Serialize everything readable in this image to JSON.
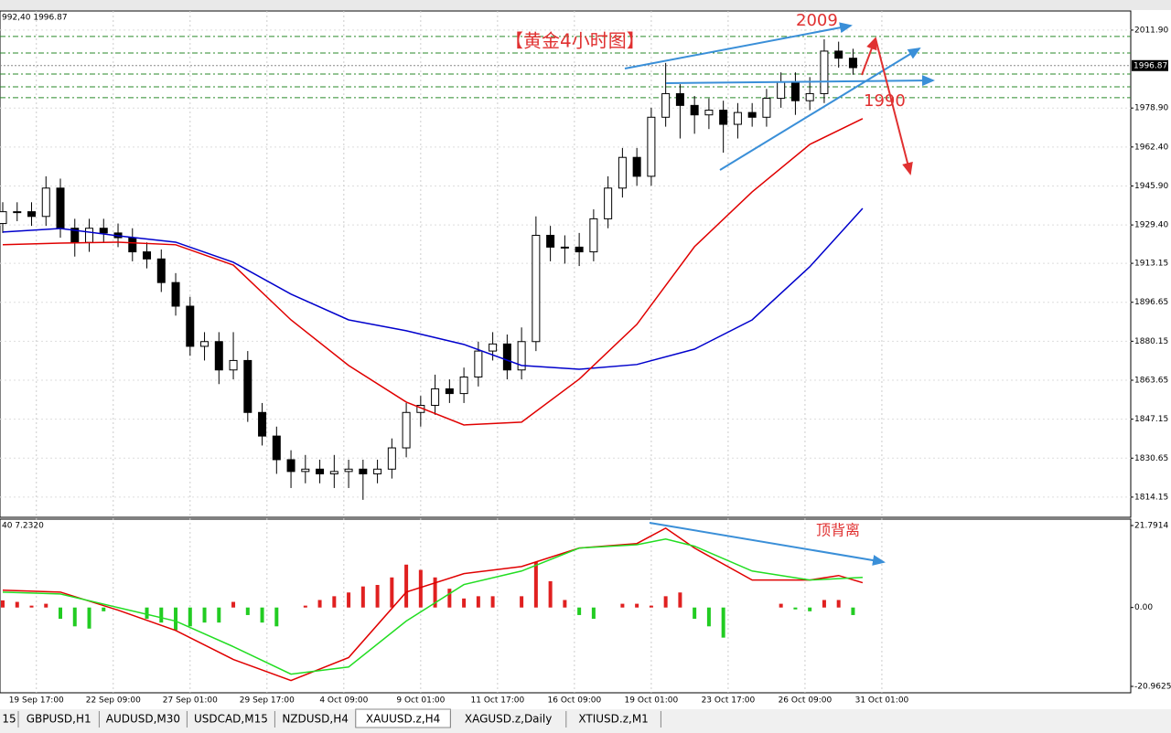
{
  "chart_data": [
    {
      "type": "candlestick",
      "info": "992,40 1996.87",
      "last_price": 1996.87,
      "xlim": [
        0,
        235
      ],
      "ylim": [
        1805.6,
        2020.0
      ],
      "yticks": [
        {
          "value": 2011.9,
          "label": "2011.90"
        },
        {
          "value": 1978.9,
          "label": "1978.90"
        },
        {
          "value": 1962.4,
          "label": "1962.40"
        },
        {
          "value": 1945.9,
          "label": "1945.90"
        },
        {
          "value": 1929.4,
          "label": "1929.40"
        },
        1913.15,
        1896.65,
        1880.15,
        1863.65,
        1847.15,
        1830.65,
        1814.15
      ],
      "grid": true,
      "levels": [
        2009.2,
        2002.2,
        1993.3,
        1987.9,
        1983.3
      ],
      "annotations": [
        "【黄金4小时图】",
        "2009",
        "1990"
      ],
      "x": [
        0,
        3,
        6,
        9,
        12,
        15,
        18,
        21,
        24,
        27,
        30,
        33,
        36,
        39,
        42,
        45,
        48,
        51,
        54,
        57,
        60,
        63,
        66,
        69,
        72,
        75,
        78,
        81,
        84,
        87,
        90,
        93,
        96,
        99,
        102,
        105,
        108,
        111,
        114,
        117,
        120,
        123,
        126,
        129,
        132,
        135,
        138,
        141,
        144,
        147,
        150,
        153,
        156,
        159,
        162,
        165,
        168,
        171,
        174,
        177
      ],
      "open": [
        1930,
        1935,
        1935,
        1933,
        1945,
        1928,
        1922,
        1928,
        1926,
        1924,
        1918,
        1915,
        1905,
        1895,
        1878,
        1880,
        1868,
        1872,
        1850,
        1840,
        1830,
        1825,
        1826,
        1824,
        1825,
        1826,
        1824,
        1826,
        1835,
        1850,
        1853,
        1860,
        1858,
        1865,
        1876,
        1879,
        1868,
        1880,
        1925,
        1920,
        1920,
        1918,
        1932,
        1945,
        1958,
        1950,
        1975,
        1985,
        1980,
        1976,
        1978,
        1972,
        1977,
        1975,
        1983,
        1990,
        1982,
        1985,
        2003,
        2000
      ],
      "high": [
        1939,
        1939,
        1939,
        1950,
        1949,
        1932,
        1932,
        1932,
        1930,
        1928,
        1922,
        1919,
        1909,
        1899,
        1884,
        1884,
        1884,
        1876,
        1854,
        1844,
        1834,
        1832,
        1830,
        1832,
        1830,
        1830,
        1830,
        1839,
        1854,
        1857,
        1866,
        1864,
        1869,
        1880,
        1884,
        1883,
        1886,
        1933,
        1929,
        1925,
        1926,
        1936,
        1950,
        1962,
        1962,
        1979,
        1998,
        1989,
        1984,
        1983,
        1982,
        1981,
        1981,
        1987,
        1994,
        1994,
        1992,
        2008,
        2007,
        2004
      ],
      "low": [
        1926,
        1931,
        1929,
        1929,
        1924,
        1916,
        1918,
        1922,
        1920,
        1914,
        1911,
        1901,
        1891,
        1874,
        1872,
        1862,
        1864,
        1846,
        1836,
        1824,
        1818,
        1820,
        1820,
        1818,
        1818,
        1813,
        1820,
        1822,
        1831,
        1844,
        1849,
        1854,
        1854,
        1861,
        1872,
        1864,
        1864,
        1876,
        1914,
        1913,
        1912,
        1914,
        1928,
        1941,
        1946,
        1946,
        1971,
        1966,
        1968,
        1970,
        1960,
        1966,
        1971,
        1971,
        1979,
        1976,
        1978,
        1981,
        1996,
        1993
      ],
      "close": [
        1935,
        1935,
        1933,
        1945,
        1928,
        1922,
        1928,
        1926,
        1924,
        1918,
        1915,
        1905,
        1895,
        1878,
        1880,
        1868,
        1872,
        1850,
        1840,
        1830,
        1825,
        1826,
        1824,
        1825,
        1826,
        1824,
        1826,
        1835,
        1850,
        1853,
        1860,
        1858,
        1865,
        1876,
        1879,
        1868,
        1880,
        1925,
        1920,
        1920,
        1918,
        1932,
        1945,
        1958,
        1950,
        1975,
        1985,
        1980,
        1976,
        1978,
        1972,
        1977,
        1975,
        1983,
        1990,
        1982,
        1985,
        2003,
        2000,
        1996
      ],
      "lines": [
        {
          "color": "#0000cc",
          "x": [
            0,
            12,
            24,
            36,
            48,
            60,
            72,
            84,
            96,
            108,
            120,
            132,
            144,
            156,
            168,
            179
          ],
          "values": [
            1926.4,
            1927.9,
            1924.8,
            1922.1,
            1913.6,
            1900.1,
            1889.2,
            1884.6,
            1878.8,
            1869.9,
            1868.3,
            1870.3,
            1876.8,
            1889.2,
            1911.7,
            1936.4
          ]
        },
        {
          "color": "#e00000",
          "x": [
            0,
            12,
            24,
            36,
            48,
            60,
            72,
            84,
            96,
            108,
            120,
            132,
            144,
            156,
            168,
            179
          ],
          "values": [
            1921.0,
            1921.7,
            1922.1,
            1921.0,
            1912.4,
            1889.2,
            1869.9,
            1854.4,
            1844.7,
            1845.9,
            1864.1,
            1887.3,
            1920.2,
            1943.4,
            1963.5,
            1974.4
          ]
        }
      ]
    },
    {
      "type": "macd",
      "info": "40 7.2320",
      "annotations": [
        "顶背离"
      ],
      "xlim": [
        0,
        235
      ],
      "ylim": [
        -22.66,
        23.49
      ],
      "yticks": [
        21.7914,
        {
          "value": 0,
          "label": "0.00"
        },
        -20.9625
      ],
      "xticks": [
        {
          "value": 7,
          "label": "19 Sep 17:00"
        },
        {
          "value": 23,
          "label": "22 Sep 09:00"
        },
        {
          "value": 39,
          "label": "27 Sep 01:00"
        },
        {
          "value": 55,
          "label": "29 Sep 17:00"
        },
        {
          "value": 71,
          "label": "4 Oct 09:00"
        },
        {
          "value": 87,
          "label": "9 Oct 01:00"
        },
        {
          "value": 103,
          "label": "11 Oct 17:00"
        },
        {
          "value": 119,
          "label": "16 Oct 09:00"
        },
        {
          "value": 135,
          "label": "19 Oct 01:00"
        },
        {
          "value": 151,
          "label": "23 Oct 17:00"
        },
        {
          "value": 167,
          "label": "26 Oct 09:00"
        },
        {
          "value": 183,
          "label": "31 Oct 01:00"
        }
      ],
      "x": [
        0,
        3,
        6,
        9,
        12,
        15,
        18,
        21,
        24,
        27,
        30,
        33,
        36,
        39,
        42,
        45,
        48,
        51,
        54,
        57,
        60,
        63,
        66,
        69,
        72,
        75,
        78,
        81,
        84,
        87,
        90,
        93,
        96,
        99,
        102,
        105,
        108,
        111,
        114,
        117,
        120,
        123,
        126,
        129,
        132,
        135,
        138,
        141,
        144,
        147,
        150,
        153,
        156,
        159,
        162,
        165,
        168,
        171,
        174,
        177
      ],
      "histogram": [
        1.9,
        1.5,
        0.5,
        1,
        -3,
        -5,
        -5.6,
        -1,
        0,
        0,
        -3,
        -4,
        -6,
        -5,
        -4,
        -4,
        1.5,
        -2,
        -4,
        -5,
        0,
        0.5,
        2,
        3,
        4,
        5.6,
        6,
        8,
        11.4,
        10,
        8,
        5,
        2.4,
        3,
        3,
        0,
        3,
        12.1,
        7,
        2,
        -2,
        -3,
        0,
        1,
        1,
        0.5,
        3,
        4,
        -3,
        -5,
        -8,
        0,
        0,
        0,
        1,
        -0.5,
        -1,
        2,
        2,
        -2
      ],
      "lines": [
        {
          "color": "#e00000",
          "x": [
            0,
            12,
            24,
            36,
            48,
            60,
            72,
            84,
            96,
            108,
            120,
            132,
            138,
            144,
            156,
            168,
            174,
            179
          ],
          "values": [
            4.6,
            4.1,
            -0.7,
            -6.1,
            -13.8,
            -19.4,
            -13.3,
            4.1,
            9.0,
            10.9,
            15.8,
            17.0,
            21.1,
            15.8,
            7.3,
            7.3,
            8.5,
            6.6
          ]
        },
        {
          "color": "#22dd22",
          "x": [
            0,
            12,
            24,
            36,
            48,
            60,
            72,
            84,
            96,
            108,
            120,
            132,
            138,
            144,
            156,
            168,
            179
          ],
          "values": [
            4.1,
            3.6,
            0,
            -3.6,
            -10.4,
            -17.7,
            -15.8,
            -3.6,
            6.1,
            9.7,
            15.8,
            16.7,
            18.2,
            16.3,
            9.7,
            7.3,
            8.0
          ]
        }
      ]
    }
  ],
  "tabs": [
    "15",
    "GBPUSD,H1",
    "AUDUSD,M30",
    "USDCAD,M15",
    "NZDUSD,H4",
    "XAUUSD.z,H4",
    "XAGUSD.z,Daily",
    "XTIUSD.z,M1"
  ]
}
